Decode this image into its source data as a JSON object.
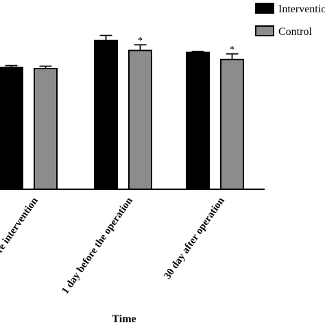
{
  "chart_data": {
    "type": "bar",
    "categories": [
      "Before intervention",
      "1 day before the operation",
      "30 day after operation"
    ],
    "series": [
      {
        "name": "Intervention",
        "color": "#000000",
        "values": [
          6.05,
          7.4,
          6.8
        ],
        "errors": [
          0.1,
          0.25,
          0.05
        ]
      },
      {
        "name": "Control",
        "color": "#8c8c8c",
        "values": [
          6.0,
          6.9,
          6.45
        ],
        "errors": [
          0.12,
          0.28,
          0.28
        ]
      }
    ],
    "annotations": [
      {
        "category": 1,
        "series": 1,
        "text": "*"
      },
      {
        "category": 2,
        "series": 1,
        "text": "*"
      }
    ],
    "xlabel": "Time",
    "ylabel": "",
    "ylim": [
      0,
      9
    ],
    "grid": false,
    "legend_position": "top-right"
  }
}
